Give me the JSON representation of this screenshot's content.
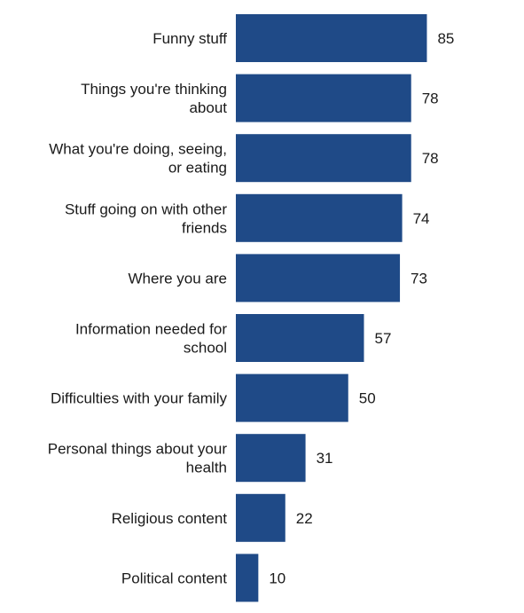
{
  "chart_data": {
    "type": "bar",
    "orientation": "horizontal",
    "categories": [
      [
        "Funny stuff"
      ],
      [
        "Things you're thinking",
        "about"
      ],
      [
        "What you're doing, seeing,",
        "or eating"
      ],
      [
        "Stuff going on with other",
        "friends"
      ],
      [
        "Where you are"
      ],
      [
        "Information needed for",
        "school"
      ],
      [
        "Difficulties with your family"
      ],
      [
        "Personal things about your",
        "health"
      ],
      [
        "Religious content"
      ],
      [
        "Political content"
      ]
    ],
    "values": [
      85,
      78,
      78,
      74,
      73,
      57,
      50,
      31,
      22,
      10
    ],
    "bar_color": "#1f4a87",
    "title": "",
    "xlabel": "",
    "ylabel": "",
    "xlim": [
      0,
      100
    ],
    "grid": false,
    "legend": "none",
    "data_labels": true
  }
}
